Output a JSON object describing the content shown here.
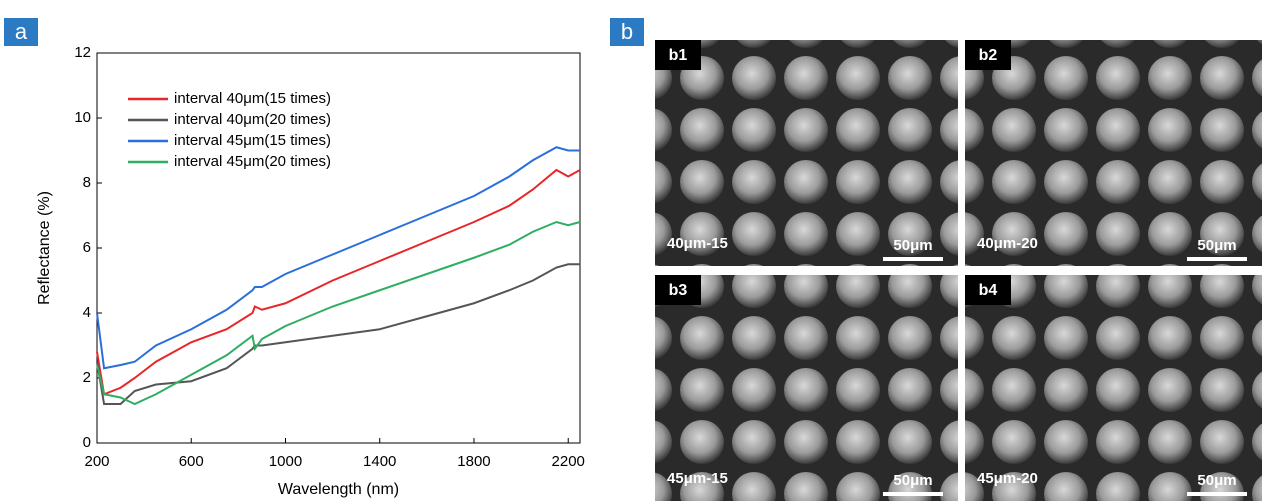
{
  "chart_data": {
    "type": "line",
    "xlabel": "Wavelength (nm)",
    "ylabel": "Reflectance (%)",
    "x": [
      200,
      230,
      300,
      360,
      450,
      600,
      750,
      860,
      870,
      900,
      1000,
      1200,
      1400,
      1600,
      1800,
      1950,
      2050,
      2150,
      2200,
      2250
    ],
    "series": [
      {
        "name": "interval 40μm(15 times)",
        "color": "#e8262a",
        "values": [
          2.8,
          1.5,
          1.7,
          2.0,
          2.5,
          3.1,
          3.5,
          4.0,
          4.2,
          4.1,
          4.3,
          5.0,
          5.6,
          6.2,
          6.8,
          7.3,
          7.8,
          8.4,
          8.2,
          8.4
        ]
      },
      {
        "name": "interval 40μm(20 times)",
        "color": "#555555",
        "values": [
          2.5,
          1.2,
          1.2,
          1.6,
          1.8,
          1.9,
          2.3,
          2.9,
          3.0,
          3.0,
          3.1,
          3.3,
          3.5,
          3.9,
          4.3,
          4.7,
          5.0,
          5.4,
          5.5,
          5.5
        ]
      },
      {
        "name": "interval 45μm(15 times)",
        "color": "#2a6fdb",
        "values": [
          4.0,
          2.3,
          2.4,
          2.5,
          3.0,
          3.5,
          4.1,
          4.7,
          4.8,
          4.8,
          5.2,
          5.8,
          6.4,
          7.0,
          7.6,
          8.2,
          8.7,
          9.1,
          9.0,
          9.0
        ]
      },
      {
        "name": "interval 45μm(20 times)",
        "color": "#2fae62",
        "values": [
          2.4,
          1.5,
          1.4,
          1.2,
          1.5,
          2.1,
          2.7,
          3.3,
          2.9,
          3.2,
          3.6,
          4.2,
          4.7,
          5.2,
          5.7,
          6.1,
          6.5,
          6.8,
          6.7,
          6.8
        ]
      }
    ],
    "xlim": [
      200,
      2250
    ],
    "xticks": [
      200,
      600,
      1000,
      1400,
      1800,
      2200
    ],
    "ylim": [
      0,
      12
    ],
    "yticks": [
      0,
      2,
      4,
      6,
      8,
      10,
      12
    ],
    "grid": false,
    "legend": "upper left"
  },
  "panels": {
    "a": "a",
    "b": "b"
  },
  "images": [
    {
      "tag": "b1",
      "caption": "40μm-15",
      "scale": "50μm"
    },
    {
      "tag": "b2",
      "caption": "40μm-20",
      "scale": "50μm"
    },
    {
      "tag": "b3",
      "caption": "45μm-15",
      "scale": "50μm"
    },
    {
      "tag": "b4",
      "caption": "45μm-20",
      "scale": "50μm"
    }
  ]
}
